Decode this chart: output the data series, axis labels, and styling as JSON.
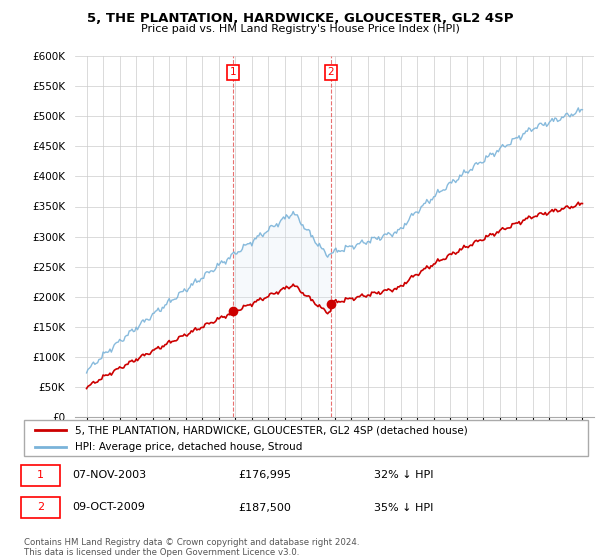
{
  "title": "5, THE PLANTATION, HARDWICKE, GLOUCESTER, GL2 4SP",
  "subtitle": "Price paid vs. HM Land Registry's House Price Index (HPI)",
  "ylim": [
    0,
    600000
  ],
  "yticks": [
    0,
    50000,
    100000,
    150000,
    200000,
    250000,
    300000,
    350000,
    400000,
    450000,
    500000,
    550000,
    600000
  ],
  "ytick_labels": [
    "£0",
    "£50K",
    "£100K",
    "£150K",
    "£200K",
    "£250K",
    "£300K",
    "£350K",
    "£400K",
    "£450K",
    "£500K",
    "£550K",
    "£600K"
  ],
  "hpi_color": "#7ab3d9",
  "price_color": "#cc0000",
  "transaction1_year": 2003.85,
  "transaction1_price": 176995,
  "transaction2_year": 2009.77,
  "transaction2_price": 187500,
  "legend_label1": "5, THE PLANTATION, HARDWICKE, GLOUCESTER, GL2 4SP (detached house)",
  "legend_label2": "HPI: Average price, detached house, Stroud",
  "annotation1_label": "1",
  "annotation1_date": "07-NOV-2003",
  "annotation1_price": "£176,995",
  "annotation1_hpi": "32% ↓ HPI",
  "annotation2_label": "2",
  "annotation2_date": "09-OCT-2009",
  "annotation2_price": "£187,500",
  "annotation2_hpi": "35% ↓ HPI",
  "footer": "Contains HM Land Registry data © Crown copyright and database right 2024.\nThis data is licensed under the Open Government Licence v3.0.",
  "shaded_region_color": "#ddeaf5",
  "dashed_line_color": "#e87070",
  "background_color": "#ffffff"
}
